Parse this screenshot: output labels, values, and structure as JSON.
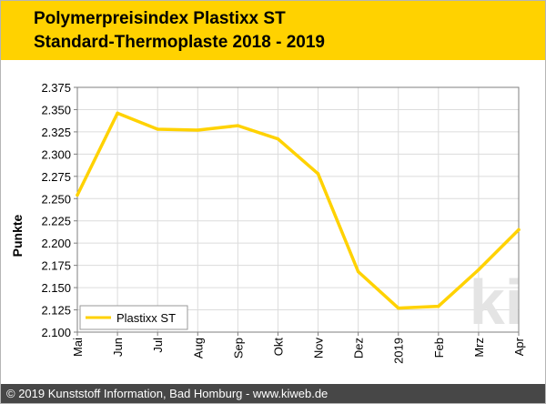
{
  "header": {
    "title_line1": "Polymerpreisindex Plastixx ST",
    "title_line2": "Standard-Thermoplaste 2018 - 2019",
    "background_color": "#ffd200"
  },
  "footer": {
    "text": "© 2019 Kunststoff Information, Bad Homburg - www.kiweb.de",
    "background_color": "#474747"
  },
  "watermark": {
    "text": "ki"
  },
  "chart_data": {
    "type": "line",
    "title": "",
    "xlabel": "",
    "ylabel": "Punkte",
    "categories": [
      "Mai",
      "Jun",
      "Jul",
      "Aug",
      "Sep",
      "Okt",
      "Nov",
      "Dez",
      "2019",
      "Feb",
      "Mrz",
      "Apr"
    ],
    "series": [
      {
        "name": "Plastixx ST",
        "color": "#ffd200",
        "values": [
          2.254,
          2.346,
          2.328,
          2.327,
          2.332,
          2.317,
          2.278,
          2.168,
          2.127,
          2.129,
          2.17,
          2.215
        ]
      }
    ],
    "ylim": [
      2.1,
      2.375
    ],
    "yticks": [
      "2.375",
      "2.350",
      "2.325",
      "2.300",
      "2.275",
      "2.250",
      "2.225",
      "2.200",
      "2.175",
      "2.150",
      "2.125",
      "2.100"
    ],
    "grid": true,
    "legend_position": "bottom-left"
  }
}
